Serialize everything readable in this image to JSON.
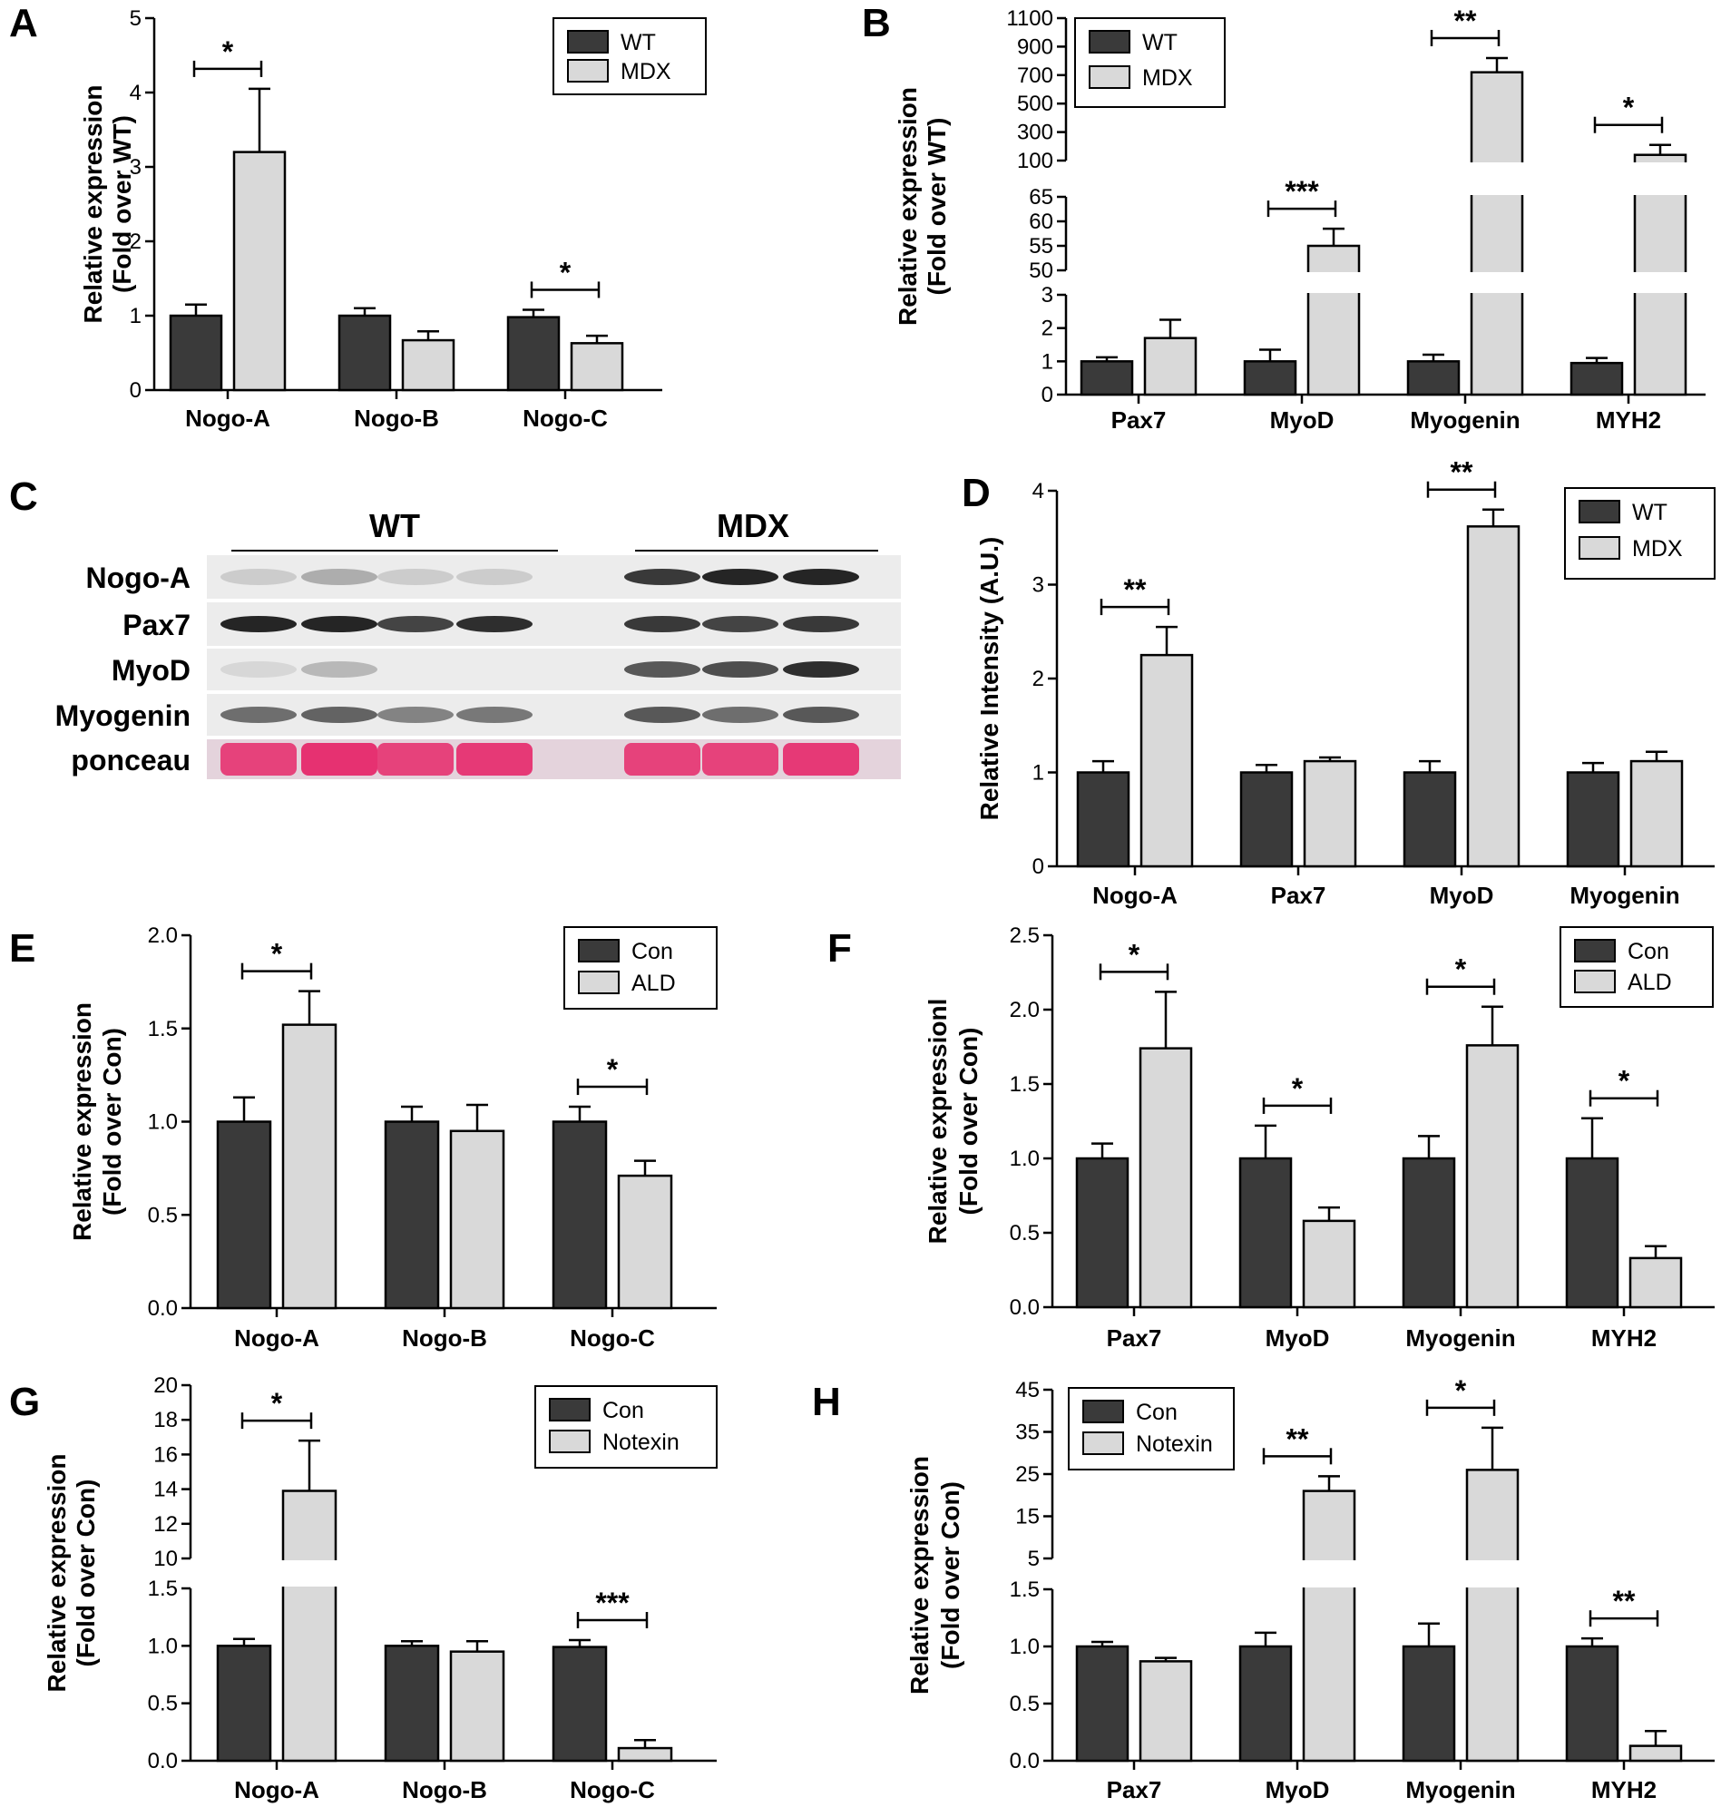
{
  "colors": {
    "dark": "#3a3a3a",
    "light": "#d9d9d9",
    "ponceau": "#e6286a",
    "membrane": "#ececec"
  },
  "chart_data": [
    {
      "panel": "A",
      "type": "bar",
      "ylabel": [
        "Relative expression",
        "(Fold over WT)"
      ],
      "categories": [
        "Nogo-A",
        "Nogo-B",
        "Nogo-C"
      ],
      "series": [
        {
          "name": "WT",
          "values": [
            1.0,
            1.0,
            0.98
          ],
          "errors": [
            0.15,
            0.1,
            0.1
          ]
        },
        {
          "name": "MDX",
          "values": [
            3.2,
            0.67,
            0.63
          ],
          "errors": [
            0.85,
            0.12,
            0.1
          ]
        }
      ],
      "yticks": [
        0,
        1,
        2,
        3,
        4,
        5
      ],
      "ylim": [
        0,
        5
      ],
      "significance": [
        {
          "category": 0,
          "label": "*"
        },
        {
          "category": 2,
          "label": "*"
        }
      ]
    },
    {
      "panel": "B",
      "type": "bar",
      "ylabel": [
        "Relative expression",
        "(Fold over WT)"
      ],
      "categories": [
        "Pax7",
        "MyoD",
        "Myogenin",
        "MYH2"
      ],
      "series": [
        {
          "name": "WT",
          "values": [
            1.0,
            1.0,
            1.0,
            0.95
          ],
          "errors": [
            0.12,
            0.35,
            0.2,
            0.15
          ]
        },
        {
          "name": "MDX",
          "values": [
            1.7,
            55,
            720,
            140
          ],
          "errors": [
            0.55,
            3.5,
            100,
            70
          ]
        }
      ],
      "segments": [
        {
          "ylim": [
            0,
            3
          ],
          "yticks": [
            0,
            1,
            2,
            3
          ]
        },
        {
          "ylim": [
            50,
            65
          ],
          "yticks": [
            50,
            55,
            60,
            65
          ]
        },
        {
          "ylim": [
            100,
            1100
          ],
          "yticks": [
            100,
            300,
            500,
            700,
            900,
            1100
          ]
        }
      ],
      "significance": [
        {
          "category": 1,
          "label": "***"
        },
        {
          "category": 2,
          "label": "**"
        },
        {
          "category": 3,
          "label": "*"
        }
      ]
    },
    {
      "panel": "D",
      "type": "bar",
      "ylabel": [
        "Relative Intensity (A.U.)"
      ],
      "categories": [
        "Nogo-A",
        "Pax7",
        "MyoD",
        "Myogenin"
      ],
      "series": [
        {
          "name": "WT",
          "values": [
            1.0,
            1.0,
            1.0,
            1.0
          ],
          "errors": [
            0.12,
            0.08,
            0.12,
            0.1
          ]
        },
        {
          "name": "MDX",
          "values": [
            2.25,
            1.12,
            3.62,
            1.12
          ],
          "errors": [
            0.3,
            0.04,
            0.18,
            0.1
          ]
        }
      ],
      "yticks": [
        0,
        1,
        2,
        3,
        4
      ],
      "ylim": [
        0,
        4
      ],
      "significance": [
        {
          "category": 0,
          "label": "**"
        },
        {
          "category": 2,
          "label": "**"
        }
      ]
    },
    {
      "panel": "E",
      "type": "bar",
      "ylabel": [
        "Relative expression",
        "(Fold over Con)"
      ],
      "categories": [
        "Nogo-A",
        "Nogo-B",
        "Nogo-C"
      ],
      "series": [
        {
          "name": "Con",
          "values": [
            1.0,
            1.0,
            1.0
          ],
          "errors": [
            0.13,
            0.08,
            0.08
          ]
        },
        {
          "name": "ALD",
          "values": [
            1.52,
            0.95,
            0.71
          ],
          "errors": [
            0.18,
            0.14,
            0.08
          ]
        }
      ],
      "yticks": [
        "0.0",
        "0.5",
        "1.0",
        "1.5",
        "2.0"
      ],
      "ylim": [
        0,
        2
      ],
      "significance": [
        {
          "category": 0,
          "label": "*"
        },
        {
          "category": 2,
          "label": "*"
        }
      ]
    },
    {
      "panel": "F",
      "type": "bar",
      "ylabel": [
        "Relative expressionl",
        "(Fold over Con)"
      ],
      "categories": [
        "Pax7",
        "MyoD",
        "Myogenin",
        "MYH2"
      ],
      "series": [
        {
          "name": "Con",
          "values": [
            1.0,
            1.0,
            1.0,
            1.0
          ],
          "errors": [
            0.1,
            0.22,
            0.15,
            0.27
          ]
        },
        {
          "name": "ALD",
          "values": [
            1.74,
            0.58,
            1.76,
            0.33
          ],
          "errors": [
            0.38,
            0.09,
            0.26,
            0.08
          ]
        }
      ],
      "yticks": [
        "0.0",
        "0.5",
        "1.0",
        "1.5",
        "2.0",
        "2.5"
      ],
      "ylim": [
        0,
        2.5
      ],
      "significance": [
        {
          "category": 0,
          "label": "*"
        },
        {
          "category": 1,
          "label": "*"
        },
        {
          "category": 2,
          "label": "*"
        },
        {
          "category": 3,
          "label": "*"
        }
      ]
    },
    {
      "panel": "G",
      "type": "bar",
      "ylabel": [
        "Relative expression",
        "(Fold over Con)"
      ],
      "categories": [
        "Nogo-A",
        "Nogo-B",
        "Nogo-C"
      ],
      "series": [
        {
          "name": "Con",
          "values": [
            1.0,
            1.0,
            0.99
          ],
          "errors": [
            0.06,
            0.04,
            0.06
          ]
        },
        {
          "name": "Notexin",
          "values": [
            13.9,
            0.95,
            0.11
          ],
          "errors": [
            2.9,
            0.09,
            0.07
          ]
        }
      ],
      "segments": [
        {
          "ylim": [
            0,
            1.5
          ],
          "yticks": [
            "0.0",
            "0.5",
            "1.0",
            "1.5"
          ]
        },
        {
          "ylim": [
            10,
            20
          ],
          "yticks": [
            10,
            12,
            14,
            16,
            18,
            20
          ]
        }
      ],
      "significance": [
        {
          "category": 0,
          "label": "*"
        },
        {
          "category": 2,
          "label": "***"
        }
      ]
    },
    {
      "panel": "H",
      "type": "bar",
      "ylabel": [
        "Relative expression",
        "(Fold over Con)"
      ],
      "categories": [
        "Pax7",
        "MyoD",
        "Myogenin",
        "MYH2"
      ],
      "series": [
        {
          "name": "Con",
          "values": [
            1.0,
            1.0,
            1.0,
            1.0
          ],
          "errors": [
            0.04,
            0.12,
            0.2,
            0.07
          ]
        },
        {
          "name": "Notexin",
          "values": [
            0.87,
            21,
            26,
            0.13
          ],
          "errors": [
            0.03,
            3.5,
            10,
            0.13
          ]
        }
      ],
      "segments": [
        {
          "ylim": [
            0,
            1.5
          ],
          "yticks": [
            "0.0",
            "0.5",
            "1.0",
            "1.5"
          ]
        },
        {
          "ylim": [
            5,
            45
          ],
          "yticks": [
            5,
            15,
            25,
            35,
            45
          ]
        }
      ],
      "significance": [
        {
          "category": 1,
          "label": "**"
        },
        {
          "category": 2,
          "label": "*"
        },
        {
          "category": 3,
          "label": "**"
        }
      ]
    }
  ],
  "blot": {
    "panel": "C",
    "groups": [
      "WT",
      "MDX"
    ],
    "rows": [
      "Nogo-A",
      "Pax7",
      "MyoD",
      "Myogenin",
      "ponceau"
    ],
    "band_intensity": [
      [
        0.15,
        0.3,
        0.15,
        0.15,
        0.85,
        0.95,
        0.95
      ],
      [
        0.95,
        0.95,
        0.8,
        0.9,
        0.85,
        0.8,
        0.85
      ],
      [
        0.1,
        0.25,
        0.0,
        0.0,
        0.7,
        0.75,
        0.9
      ],
      [
        0.6,
        0.65,
        0.5,
        0.55,
        0.7,
        0.6,
        0.7
      ],
      [
        0.85,
        0.95,
        0.85,
        0.9,
        0.85,
        0.85,
        0.9
      ]
    ]
  }
}
